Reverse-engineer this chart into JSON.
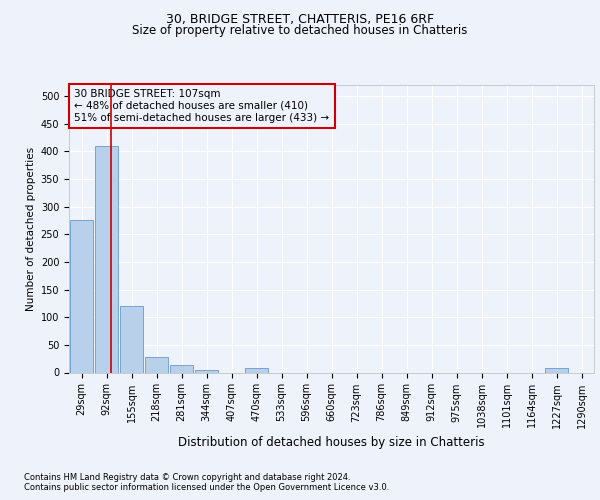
{
  "title1": "30, BRIDGE STREET, CHATTERIS, PE16 6RF",
  "title2": "Size of property relative to detached houses in Chatteris",
  "xlabel": "Distribution of detached houses by size in Chatteris",
  "ylabel": "Number of detached properties",
  "footnote1": "Contains HM Land Registry data © Crown copyright and database right 2024.",
  "footnote2": "Contains public sector information licensed under the Open Government Licence v3.0.",
  "bar_labels": [
    "29sqm",
    "92sqm",
    "155sqm",
    "218sqm",
    "281sqm",
    "344sqm",
    "407sqm",
    "470sqm",
    "533sqm",
    "596sqm",
    "660sqm",
    "723sqm",
    "786sqm",
    "849sqm",
    "912sqm",
    "975sqm",
    "1038sqm",
    "1101sqm",
    "1164sqm",
    "1227sqm",
    "1290sqm"
  ],
  "bar_values": [
    275,
    410,
    120,
    28,
    14,
    5,
    0,
    8,
    0,
    0,
    0,
    0,
    0,
    0,
    0,
    0,
    0,
    0,
    0,
    8,
    0
  ],
  "bar_color": "#b8d0ea",
  "bar_edge_color": "#6699cc",
  "vline_x_index": 1.18,
  "vline_color": "#cc0000",
  "annotation_line1": "30 BRIDGE STREET: 107sqm",
  "annotation_line2": "← 48% of detached houses are smaller (410)",
  "annotation_line3": "51% of semi-detached houses are larger (433) →",
  "annotation_box_edge_color": "#cc0000",
  "ylim": [
    0,
    520
  ],
  "yticks": [
    0,
    50,
    100,
    150,
    200,
    250,
    300,
    350,
    400,
    450,
    500
  ],
  "bg_color": "#eef2fb",
  "grid_color": "#ffffff",
  "title1_fontsize": 9,
  "title2_fontsize": 8.5,
  "ylabel_fontsize": 7.5,
  "xlabel_fontsize": 8.5,
  "tick_fontsize": 7,
  "annot_fontsize": 7.5,
  "footnote_fontsize": 6
}
